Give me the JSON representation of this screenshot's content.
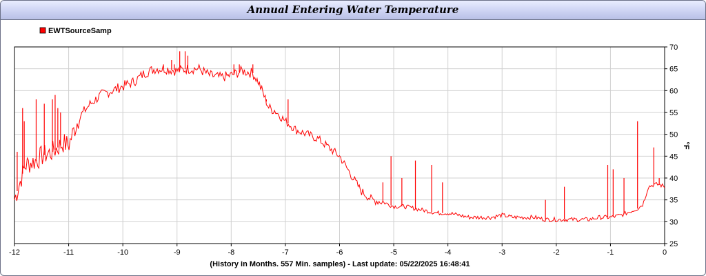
{
  "chart_data": {
    "type": "line",
    "title": "Annual Entering Water Temperature",
    "xlabel": "(History in Months. 557 Min. samples) - Last update: 05/22/2025 16:48:41",
    "ylabel": "°F",
    "xlim": [
      -12,
      0
    ],
    "ylim": [
      25,
      70
    ],
    "x_ticks": [
      "-12",
      "-11",
      "-10",
      "-9",
      "-8",
      "-7",
      "-6",
      "-5",
      "-4",
      "-3",
      "-2",
      "-1",
      "0"
    ],
    "y_ticks": [
      "25",
      "30",
      "35",
      "40",
      "45",
      "50",
      "55",
      "60",
      "65",
      "70"
    ],
    "grid": true,
    "legend_position": "top-left",
    "series": [
      {
        "name": "EWTSourceSamp",
        "color": "#ff0000",
        "x": [
          -12.0,
          -11.9,
          -11.8,
          -11.7,
          -11.6,
          -11.5,
          -11.4,
          -11.3,
          -11.2,
          -11.1,
          -11.0,
          -10.9,
          -10.8,
          -10.6,
          -10.4,
          -10.2,
          -10.0,
          -9.8,
          -9.6,
          -9.4,
          -9.2,
          -9.0,
          -8.8,
          -8.6,
          -8.4,
          -8.2,
          -8.0,
          -7.8,
          -7.6,
          -7.5,
          -7.4,
          -7.3,
          -7.2,
          -7.0,
          -6.8,
          -6.6,
          -6.4,
          -6.2,
          -6.0,
          -5.8,
          -5.6,
          -5.4,
          -5.2,
          -5.0,
          -4.8,
          -4.6,
          -4.4,
          -4.2,
          -4.0,
          -3.8,
          -3.6,
          -3.4,
          -3.2,
          -3.0,
          -2.8,
          -2.6,
          -2.4,
          -2.2,
          -2.0,
          -1.8,
          -1.6,
          -1.4,
          -1.2,
          -1.0,
          -0.8,
          -0.6,
          -0.5,
          -0.4,
          -0.3,
          -0.2,
          -0.1,
          0.0
        ],
        "y": [
          35,
          39,
          43,
          43.5,
          44,
          45,
          45.5,
          46,
          47,
          48,
          47.5,
          51,
          54,
          57,
          59,
          60,
          61,
          62,
          64,
          65,
          65,
          64.5,
          65,
          65,
          63.5,
          63,
          63.5,
          64.5,
          64,
          62,
          59,
          56,
          55.5,
          53,
          51,
          50,
          49,
          47,
          45,
          41,
          37,
          35,
          34.5,
          33.5,
          33.5,
          33,
          32.5,
          32,
          32,
          31.5,
          31,
          31,
          31,
          31.5,
          31,
          31,
          31,
          30.5,
          30.5,
          30.5,
          30.5,
          30.5,
          31,
          31,
          31.5,
          32.5,
          33,
          34,
          38,
          38.5,
          38.5,
          38
        ],
        "spikes": [
          [
            -11.95,
            46
          ],
          [
            -11.85,
            56
          ],
          [
            -11.82,
            53
          ],
          [
            -11.6,
            58
          ],
          [
            -11.45,
            57
          ],
          [
            -11.3,
            58
          ],
          [
            -11.25,
            59
          ],
          [
            -11.2,
            56
          ],
          [
            -11.15,
            55
          ],
          [
            -9.25,
            66
          ],
          [
            -9.1,
            67
          ],
          [
            -9.05,
            66
          ],
          [
            -8.95,
            69
          ],
          [
            -8.85,
            69
          ],
          [
            -8.8,
            68
          ],
          [
            -7.95,
            66
          ],
          [
            -7.85,
            66
          ],
          [
            -7.6,
            66
          ],
          [
            -7.35,
            58
          ],
          [
            -6.95,
            58
          ],
          [
            -5.2,
            39
          ],
          [
            -5.05,
            45
          ],
          [
            -4.85,
            40
          ],
          [
            -4.6,
            44
          ],
          [
            -4.3,
            43
          ],
          [
            -4.1,
            39
          ],
          [
            -2.2,
            35
          ],
          [
            -1.85,
            38
          ],
          [
            -1.05,
            43
          ],
          [
            -0.95,
            42
          ],
          [
            -0.75,
            40
          ],
          [
            -0.5,
            53
          ],
          [
            -0.2,
            47
          ],
          [
            -0.1,
            40
          ]
        ]
      }
    ]
  }
}
